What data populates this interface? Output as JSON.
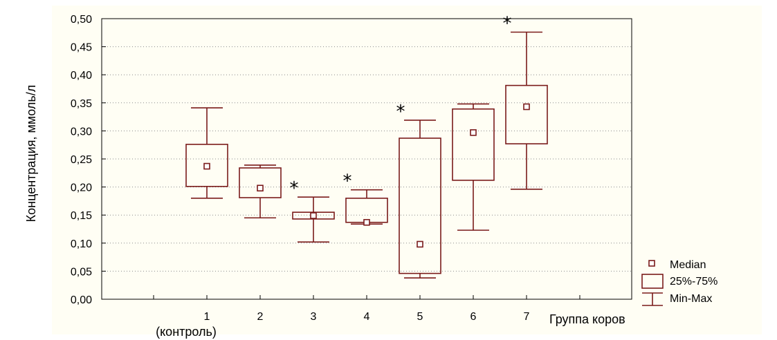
{
  "chart_data": {
    "type": "boxplot",
    "xlabel": "Группа коров",
    "ylabel": "Концентрация, ммоль/л",
    "ylim": [
      0,
      0.5
    ],
    "yticks": [
      "0,00",
      "0,05",
      "0,10",
      "0,15",
      "0,20",
      "0,25",
      "0,30",
      "0,35",
      "0,40",
      "0,45",
      "0,50"
    ],
    "categories": [
      "1",
      "2",
      "3",
      "4",
      "5",
      "6",
      "7"
    ],
    "category_sublabels": [
      "(контроль)",
      "",
      "",
      "",
      "",
      "",
      ""
    ],
    "boxes": [
      {
        "group": "1",
        "median": 0.237,
        "q1": 0.201,
        "q3": 0.276,
        "min": 0.18,
        "max": 0.341,
        "significant": false
      },
      {
        "group": "2",
        "median": 0.198,
        "q1": 0.181,
        "q3": 0.234,
        "min": 0.145,
        "max": 0.239,
        "significant": false
      },
      {
        "group": "3",
        "median": 0.149,
        "q1": 0.143,
        "q3": 0.155,
        "min": 0.102,
        "max": 0.182,
        "significant": true
      },
      {
        "group": "4",
        "median": 0.137,
        "q1": 0.137,
        "q3": 0.18,
        "min": 0.134,
        "max": 0.195,
        "significant": true
      },
      {
        "group": "5",
        "median": 0.098,
        "q1": 0.046,
        "q3": 0.287,
        "min": 0.038,
        "max": 0.319,
        "significant": true
      },
      {
        "group": "6",
        "median": 0.297,
        "q1": 0.212,
        "q3": 0.339,
        "min": 0.123,
        "max": 0.348,
        "significant": false
      },
      {
        "group": "7",
        "median": 0.343,
        "q1": 0.277,
        "q3": 0.381,
        "min": 0.196,
        "max": 0.476,
        "significant": true
      }
    ],
    "significance_marker": "*",
    "legend": {
      "placement": "bottom-right",
      "entries": [
        "Median",
        "25%-75%",
        "Min-Max"
      ]
    },
    "grid": true,
    "colors": {
      "box": "#7a1a1a",
      "grid": "#8a8a8a"
    }
  }
}
